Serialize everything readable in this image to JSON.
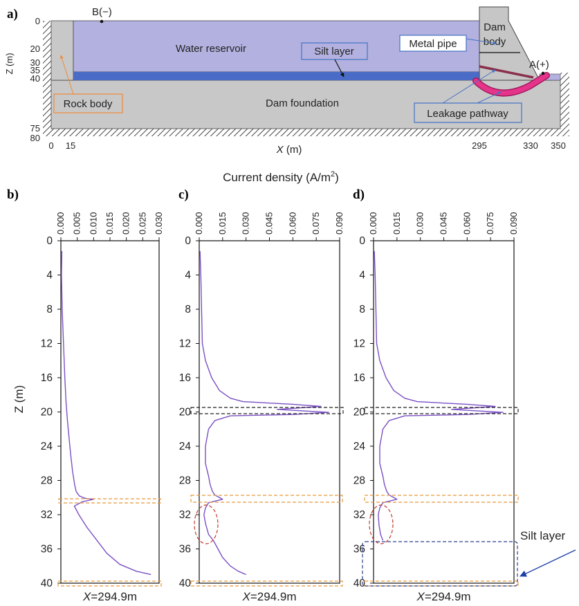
{
  "panel_a": {
    "label": "a)",
    "labels": {
      "b": "B(−)",
      "a": "A(+)",
      "water": "Water reservoir",
      "silt": "Silt layer",
      "dam1": "Dam",
      "dam2": "body",
      "pipe": "Metal pipe",
      "rock": "Rock body",
      "foundation": "Dam foundation",
      "leak": "Leakage pathway"
    },
    "z_ticks": [
      "0",
      "20",
      "30",
      "35",
      "40",
      "75",
      "80"
    ],
    "x_ticks": [
      "0",
      "15",
      "295",
      "330",
      "350"
    ],
    "z_axis_title": "Z (m)",
    "x_axis_title_var": "X",
    "x_axis_title_unit": " (m)",
    "colors": {
      "water": "#b3b1df",
      "silt": "#4a6cc6",
      "ground": "#c8c8c8",
      "dam": "#c6c6c6",
      "pipe": "#8a2f4a",
      "leak": "#e7348b",
      "rock_box": "#ee8a3a",
      "label_box": "#4472c4"
    }
  },
  "current_axis_title": "Current density (A/m",
  "current_axis_sup": "2",
  "current_axis_close": ")",
  "z_axis_title": "Z (m)",
  "silt_callout": "Silt layer",
  "line_color": "#7a4fc4",
  "chart_data": [
    {
      "type": "line",
      "panel_label": "b)",
      "x_ticks": [
        "0.000",
        "0.005",
        "0.010",
        "0.015",
        "0.020",
        "0.025",
        "0.030"
      ],
      "y_ticks": [
        "0",
        "4",
        "8",
        "12",
        "16",
        "20",
        "24",
        "28",
        "32",
        "36",
        "40"
      ],
      "xlim": [
        0,
        0.03
      ],
      "ylim": [
        0,
        40
      ],
      "bottom_caption_var": "X",
      "bottom_caption_rest": "=294.9m",
      "series": [
        {
          "x": [
            0.0003,
            0.0002,
            0.0004,
            0.0008,
            0.0012,
            0.0016,
            0.002,
            0.0025,
            0.003,
            0.0036,
            0.0042,
            0.0047,
            0.0056,
            0.0075,
            0.01,
            0.0065,
            0.0041,
            0.0055,
            0.008,
            0.011,
            0.014,
            0.018,
            0.023,
            0.0275
          ],
          "y": [
            1.2,
            4,
            8,
            12,
            16,
            19,
            21,
            23,
            25,
            27,
            28.5,
            29.3,
            29.8,
            30.1,
            30.2,
            30.5,
            31,
            32,
            33.5,
            35,
            36.5,
            37.8,
            38.6,
            39
          ]
        }
      ]
    },
    {
      "type": "line",
      "panel_label": "c)",
      "x_ticks": [
        "0.000",
        "0.015",
        "0.030",
        "0.045",
        "0.060",
        "0.075",
        "0.090"
      ],
      "y_ticks": [
        "0",
        "4",
        "8",
        "12",
        "16",
        "20",
        "24",
        "28",
        "32",
        "36",
        "40"
      ],
      "xlim": [
        0,
        0.09
      ],
      "ylim": [
        0,
        40
      ],
      "bottom_caption_var": "X",
      "bottom_caption_rest": "=294.9m",
      "series": [
        {
          "x": [
            0.0005,
            0.001,
            0.0015,
            0.002,
            0.004,
            0.008,
            0.013,
            0.02,
            0.028,
            0.06,
            0.078,
            0.05,
            0.083,
            0.06,
            0.02,
            0.01,
            0.006,
            0.004,
            0.004,
            0.006,
            0.007,
            0.0085,
            0.01,
            0.012,
            0.015,
            0.006,
            0.004,
            0.003,
            0.004,
            0.006,
            0.009,
            0.012,
            0.015,
            0.02,
            0.025,
            0.03
          ],
          "y": [
            1.2,
            4,
            8,
            12,
            14,
            16,
            17.5,
            18.4,
            18.8,
            19.1,
            19.35,
            19.7,
            20.05,
            20.3,
            20.45,
            21,
            22,
            24,
            26,
            27.5,
            28.5,
            29.3,
            29.7,
            29.9,
            30.2,
            30.6,
            31.2,
            32,
            33,
            34.3,
            35,
            36,
            37,
            38,
            38.6,
            39
          ]
        }
      ]
    },
    {
      "type": "line",
      "panel_label": "d)",
      "x_ticks": [
        "0.000",
        "0.015",
        "0.030",
        "0.045",
        "0.060",
        "0.075",
        "0.090"
      ],
      "y_ticks": [
        "0",
        "4",
        "8",
        "12",
        "16",
        "20",
        "24",
        "28",
        "32",
        "36",
        "40"
      ],
      "xlim": [
        0,
        0.09
      ],
      "ylim": [
        0,
        40
      ],
      "bottom_caption_var": "X",
      "bottom_caption_rest": "=294.9m",
      "series": [
        {
          "x": [
            0.0005,
            0.001,
            0.0015,
            0.002,
            0.004,
            0.008,
            0.013,
            0.02,
            0.028,
            0.06,
            0.078,
            0.05,
            0.083,
            0.06,
            0.02,
            0.01,
            0.006,
            0.004,
            0.004,
            0.006,
            0.007,
            0.0085,
            0.01,
            0.012,
            0.015,
            0.006,
            0.004,
            0.003,
            0.0035,
            0.0045,
            0.006
          ],
          "y": [
            1.2,
            4,
            8,
            12,
            14,
            16,
            17.5,
            18.4,
            18.8,
            19.1,
            19.35,
            19.7,
            20.05,
            20.3,
            20.45,
            21,
            22,
            24,
            26,
            27.5,
            28.5,
            29.3,
            29.7,
            29.9,
            30.2,
            30.6,
            31.2,
            32,
            33.2,
            34.3,
            35
          ]
        }
      ]
    }
  ]
}
